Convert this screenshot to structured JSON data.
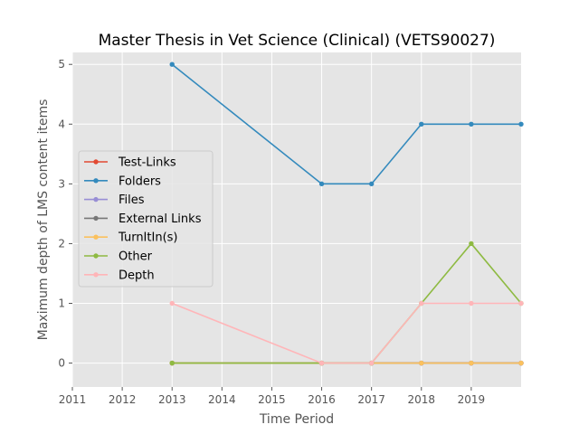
{
  "chart_data": {
    "type": "line",
    "title": "Master Thesis in Vet Science (Clinical) (VETS90027)",
    "xlabel": "Time Period",
    "ylabel": "Maximum depth of LMS content items",
    "xlim": [
      2011,
      2020
    ],
    "ylim": [
      -0.4,
      5.2
    ],
    "x_ticks": [
      2011,
      2012,
      2013,
      2014,
      2015,
      2016,
      2017,
      2018,
      2019
    ],
    "y_ticks": [
      0,
      1,
      2,
      3,
      4,
      5
    ],
    "grid": true,
    "legend_position": "center-left",
    "x": [
      2013,
      2016,
      2017,
      2018,
      2019,
      2020
    ],
    "series": [
      {
        "name": "Test-Links",
        "color": "#E24A33",
        "values": [
          0,
          0,
          0,
          0,
          0,
          0
        ]
      },
      {
        "name": "Folders",
        "color": "#348ABD",
        "values": [
          5,
          3,
          3,
          4,
          4,
          4
        ]
      },
      {
        "name": "Files",
        "color": "#988ED5",
        "values": [
          0,
          0,
          0,
          0,
          0,
          0
        ]
      },
      {
        "name": "External Links",
        "color": "#777777",
        "values": [
          0,
          0,
          0,
          0,
          0,
          0
        ]
      },
      {
        "name": "TurnItIn(s)",
        "color": "#FBC15E",
        "values": [
          0,
          0,
          0,
          0,
          0,
          0
        ]
      },
      {
        "name": "Other",
        "color": "#8EBA42",
        "values": [
          0,
          0,
          0,
          1,
          2,
          1
        ]
      },
      {
        "name": "Depth",
        "color": "#FFB5B8",
        "values": [
          1,
          0,
          0,
          1,
          1,
          1
        ]
      }
    ]
  }
}
